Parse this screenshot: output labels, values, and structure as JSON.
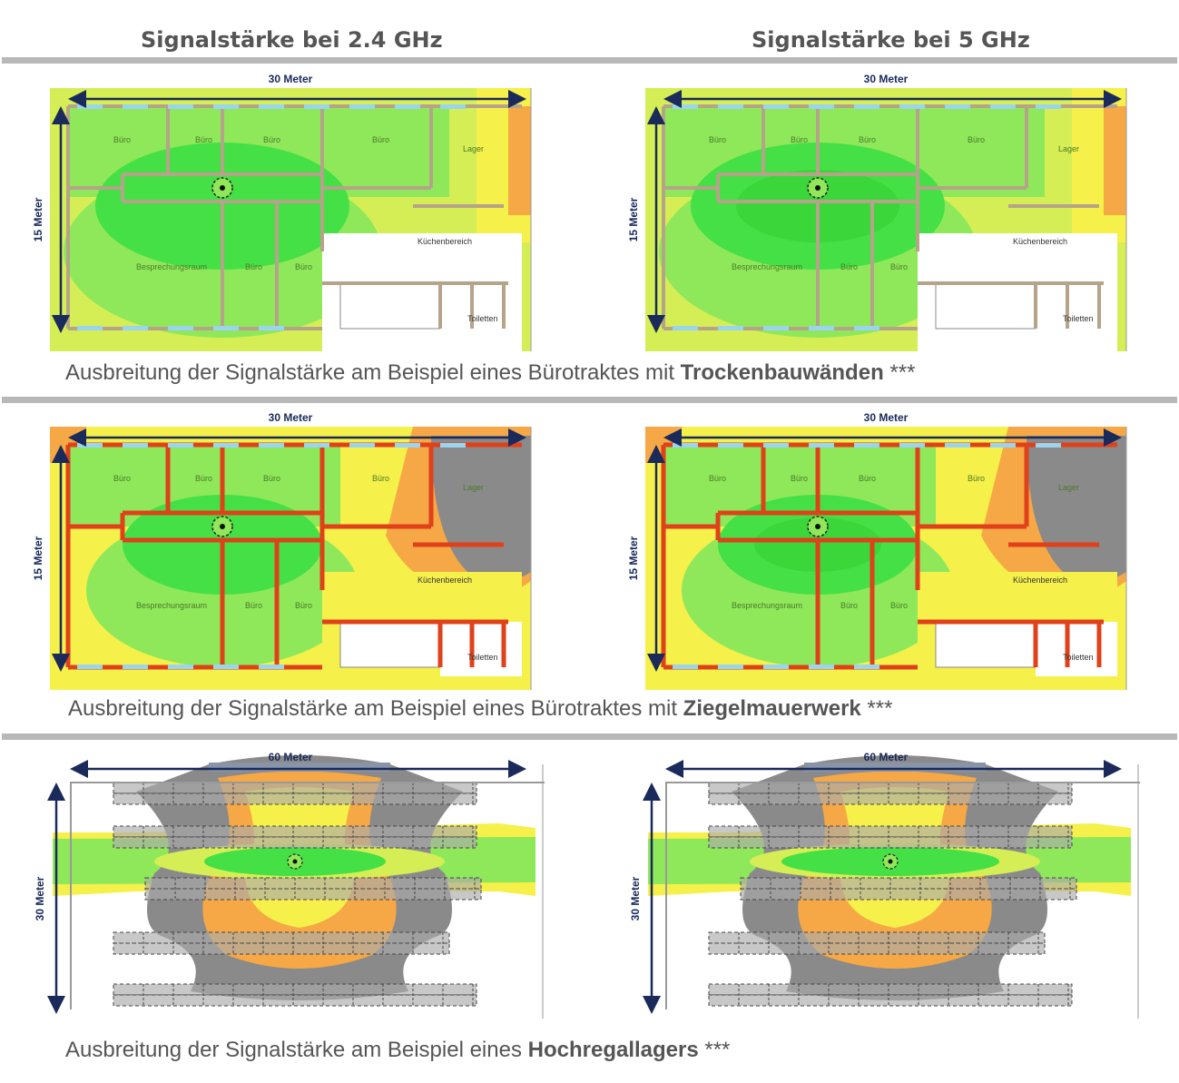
{
  "headers": {
    "left": "Signalstärke bei 2.4 GHz",
    "right": "Signalstärke bei 5 GHz"
  },
  "colors": {
    "separator": "#b8b8b8",
    "wall_drywall": "#b5a38a",
    "wall_brick": "#e0401a",
    "strong": "#45e045",
    "good": "#8fe85a",
    "medium": "#d6ee55",
    "weak_yellow": "#f5f04a",
    "weak_orange": "#f5a845",
    "none_gray": "#8a8a8a",
    "dimension_arrow": "#1a2a5a"
  },
  "rows": [
    {
      "type": "drywall",
      "width_label": "30 Meter",
      "height_label": "15 Meter",
      "rooms": [
        "Büro",
        "Büro",
        "Büro",
        "Büro",
        "Lager",
        "Besprechungsraum",
        "Büro",
        "Büro",
        "Küchenbereich",
        "Toiletten"
      ],
      "caption": {
        "prefix": "Ausbreitung der Signalstärke am Beispiel eines Bürotraktes mit ",
        "bold": "Trockenbauwänden",
        "suffix": " ***"
      }
    },
    {
      "type": "brick",
      "width_label": "30 Meter",
      "height_label": "15 Meter",
      "rooms": [
        "Büro",
        "Büro",
        "Büro",
        "Büro",
        "Lager",
        "Besprechungsraum",
        "Büro",
        "Büro",
        "Küchenbereich",
        "Toiletten"
      ],
      "caption": {
        "prefix": "Ausbreitung der Signalstärke am Beispiel eines Bürotraktes mit ",
        "bold": "Ziegelmauerwerk",
        "suffix": " ***"
      }
    },
    {
      "type": "warehouse",
      "width_label": "60 Meter",
      "height_label": "30 Meter",
      "caption": {
        "prefix": "Ausbreitung der Signalstärke am Beispiel eines ",
        "bold": "Hochregallagers",
        "suffix": " ***"
      }
    }
  ]
}
